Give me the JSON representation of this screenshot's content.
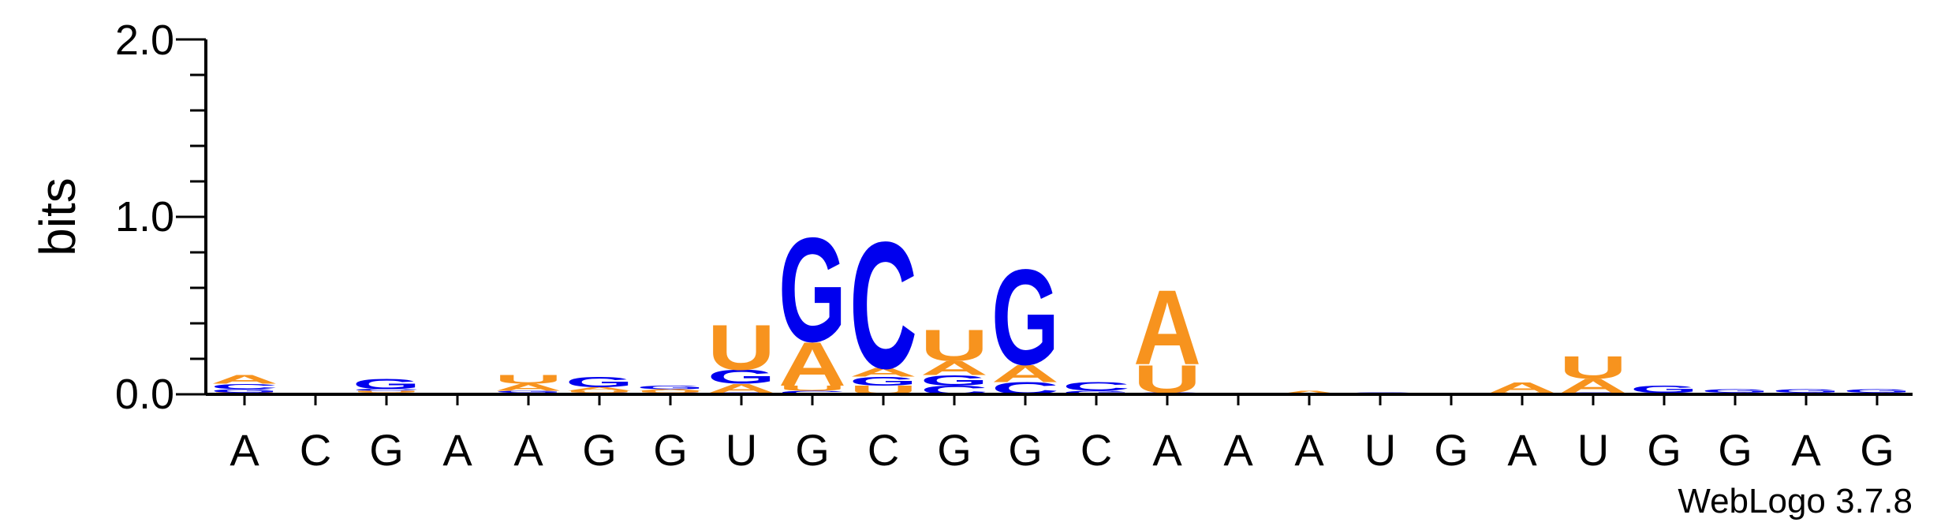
{
  "chart_data": {
    "type": "sequence-logo",
    "ylabel": "bits",
    "ylim": [
      0,
      2.0
    ],
    "yticks": [
      "0.0",
      "1.0",
      "2.0"
    ],
    "xlabels": [
      "A",
      "C",
      "G",
      "A",
      "A",
      "G",
      "G",
      "U",
      "G",
      "C",
      "G",
      "G",
      "C",
      "A",
      "A",
      "A",
      "U",
      "G",
      "A",
      "U",
      "G",
      "G",
      "A",
      "G"
    ],
    "footer": "WebLogo 3.7.8",
    "colors": {
      "A": "#f7931e",
      "U": "#f7931e",
      "G": "#0000ee",
      "C": "#0000ee"
    },
    "positions": [
      [
        [
          "U",
          0.01
        ],
        [
          "G",
          0.02
        ],
        [
          "C",
          0.03
        ],
        [
          "A",
          0.05
        ]
      ],
      [],
      [
        [
          "A",
          0.01
        ],
        [
          "U",
          0.01
        ],
        [
          "C",
          0.01
        ],
        [
          "G",
          0.06
        ]
      ],
      [],
      [
        [
          "C",
          0.01
        ],
        [
          "G",
          0.01
        ],
        [
          "A",
          0.04
        ],
        [
          "U",
          0.05
        ]
      ],
      [
        [
          "C",
          0.01
        ],
        [
          "U",
          0.01
        ],
        [
          "A",
          0.02
        ],
        [
          "G",
          0.06
        ]
      ],
      [
        [
          "C",
          0.01
        ],
        [
          "U",
          0.01
        ],
        [
          "A",
          0.01
        ],
        [
          "G",
          0.02
        ]
      ],
      [
        [
          "C",
          0.01
        ],
        [
          "A",
          0.05
        ],
        [
          "G",
          0.08
        ],
        [
          "U",
          0.26
        ]
      ],
      [
        [
          "C",
          0.02
        ],
        [
          "U",
          0.03
        ],
        [
          "A",
          0.25
        ],
        [
          "G",
          0.6
        ]
      ],
      [
        [
          "U",
          0.05
        ],
        [
          "G",
          0.05
        ],
        [
          "A",
          0.05
        ],
        [
          "C",
          0.73
        ]
      ],
      [
        [
          "C",
          0.05
        ],
        [
          "G",
          0.06
        ],
        [
          "A",
          0.08
        ],
        [
          "U",
          0.18
        ]
      ],
      [
        [
          "C",
          0.07
        ],
        [
          "A",
          0.1
        ],
        [
          "G",
          0.55
        ]
      ],
      [
        [
          "G",
          0.02
        ],
        [
          "C",
          0.05
        ]
      ],
      [
        [
          "C",
          0.01
        ],
        [
          "U",
          0.16
        ],
        [
          "A",
          0.43
        ]
      ],
      [],
      [
        [
          "A",
          0.02
        ]
      ],
      [
        [
          "C",
          0.01
        ]
      ],
      [],
      [
        [
          "U",
          0.01
        ],
        [
          "A",
          0.06
        ]
      ],
      [
        [
          "C",
          0.01
        ],
        [
          "A",
          0.08
        ],
        [
          "U",
          0.13
        ]
      ],
      [
        [
          "C",
          0.01
        ],
        [
          "G",
          0.04
        ]
      ],
      [
        [
          "A",
          0.01
        ],
        [
          "G",
          0.02
        ]
      ],
      [
        [
          "A",
          0.01
        ],
        [
          "G",
          0.02
        ]
      ],
      [
        [
          "A",
          0.01
        ],
        [
          "G",
          0.02
        ]
      ]
    ]
  }
}
